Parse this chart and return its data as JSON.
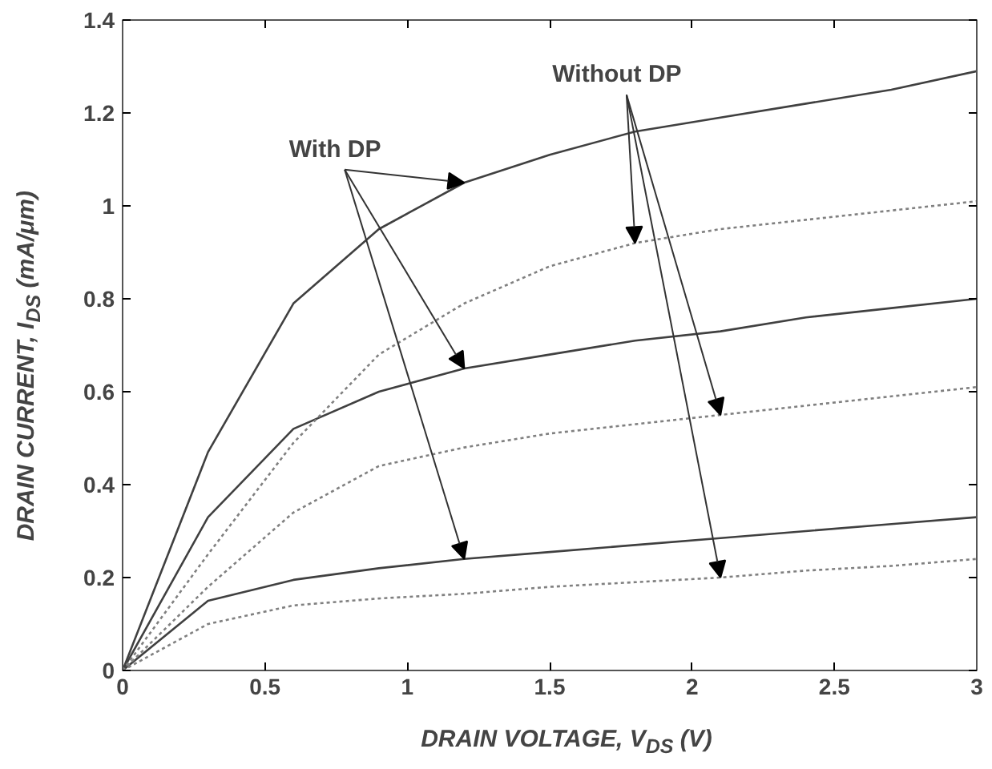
{
  "chart_data": {
    "type": "line",
    "xlabel": "DRAIN VOLTAGE, V$_{DS}$ (V)",
    "ylabel": "DRAIN CURRENT, I$_{DS}$ (mA/μm)",
    "x": [
      0,
      0.3,
      0.6,
      0.9,
      1.2,
      1.5,
      1.8,
      2.1,
      2.4,
      2.7,
      3.0
    ],
    "xlim": [
      0,
      3
    ],
    "ylim": [
      0,
      1.4
    ],
    "xticks": [
      0,
      0.5,
      1,
      1.5,
      2,
      2.5,
      3
    ],
    "yticks": [
      0,
      0.2,
      0.4,
      0.6,
      0.8,
      1,
      1.2,
      1.4
    ],
    "grid": false,
    "marker": "none",
    "series": [
      {
        "color": "#404040",
        "line_style": "solid",
        "values": [
          0,
          0.47,
          0.79,
          0.95,
          1.05,
          1.11,
          1.16,
          1.19,
          1.22,
          1.25,
          1.29
        ]
      },
      {
        "color": "#404040",
        "line_style": "solid",
        "values": [
          0,
          0.33,
          0.52,
          0.6,
          0.65,
          0.68,
          0.71,
          0.73,
          0.76,
          0.78,
          0.8
        ]
      },
      {
        "color": "#404040",
        "line_style": "solid",
        "values": [
          0,
          0.15,
          0.195,
          0.22,
          0.24,
          0.255,
          0.27,
          0.285,
          0.3,
          0.315,
          0.33
        ]
      },
      {
        "color": "#808080",
        "line_style": "dotted",
        "values": [
          0,
          0.25,
          0.49,
          0.68,
          0.79,
          0.87,
          0.92,
          0.95,
          0.97,
          0.99,
          1.01
        ]
      },
      {
        "color": "#808080",
        "line_style": "dotted",
        "values": [
          0,
          0.18,
          0.34,
          0.44,
          0.48,
          0.51,
          0.53,
          0.55,
          0.57,
          0.59,
          0.61
        ]
      },
      {
        "color": "#808080",
        "line_style": "dotted",
        "values": [
          0,
          0.1,
          0.14,
          0.155,
          0.165,
          0.18,
          0.19,
          0.2,
          0.215,
          0.225,
          0.24
        ]
      }
    ],
    "annotations": [
      {
        "text": "With DP",
        "x": 1.2,
        "y": 1.05
      },
      {
        "text": "Without DP",
        "x": 1.8,
        "y": 0.92
      }
    ]
  }
}
